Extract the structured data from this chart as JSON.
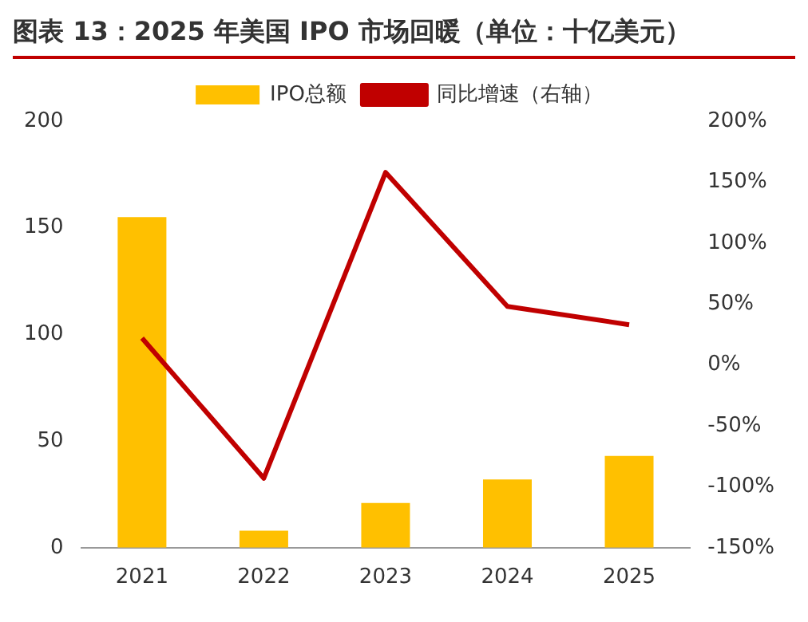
{
  "chart_data": {
    "type": "bar",
    "title": "图表 13：2025 年美国 IPO 市场回暖（单位：十亿美元）",
    "categories": [
      "2021",
      "2022",
      "2023",
      "2024",
      "2025"
    ],
    "series": [
      {
        "name": "IPO总额",
        "color": "#ffc000",
        "values": [
          155,
          8,
          21,
          32,
          43
        ]
      },
      {
        "name": "同比增速（右轴）",
        "type": "line",
        "axis": "y2",
        "color": "#c00000",
        "values": [
          22,
          -93,
          158,
          48,
          33
        ]
      }
    ],
    "ylim": [
      0,
      200
    ],
    "yticks": [
      0,
      50,
      100,
      150,
      200
    ],
    "y2lim": [
      -150,
      200
    ],
    "y2ticks": [
      {
        "value": -150,
        "label": "-150%"
      },
      {
        "value": -100,
        "label": "-100%"
      },
      {
        "value": -50,
        "label": "-50%"
      },
      {
        "value": 0,
        "label": "0%"
      },
      {
        "value": 50,
        "label": "50%"
      },
      {
        "value": 100,
        "label": "100%"
      },
      {
        "value": 150,
        "label": "150%"
      },
      {
        "value": 200,
        "label": "200%"
      }
    ],
    "legend": "top",
    "grid": false,
    "marker": "none",
    "line_style": "solid"
  }
}
